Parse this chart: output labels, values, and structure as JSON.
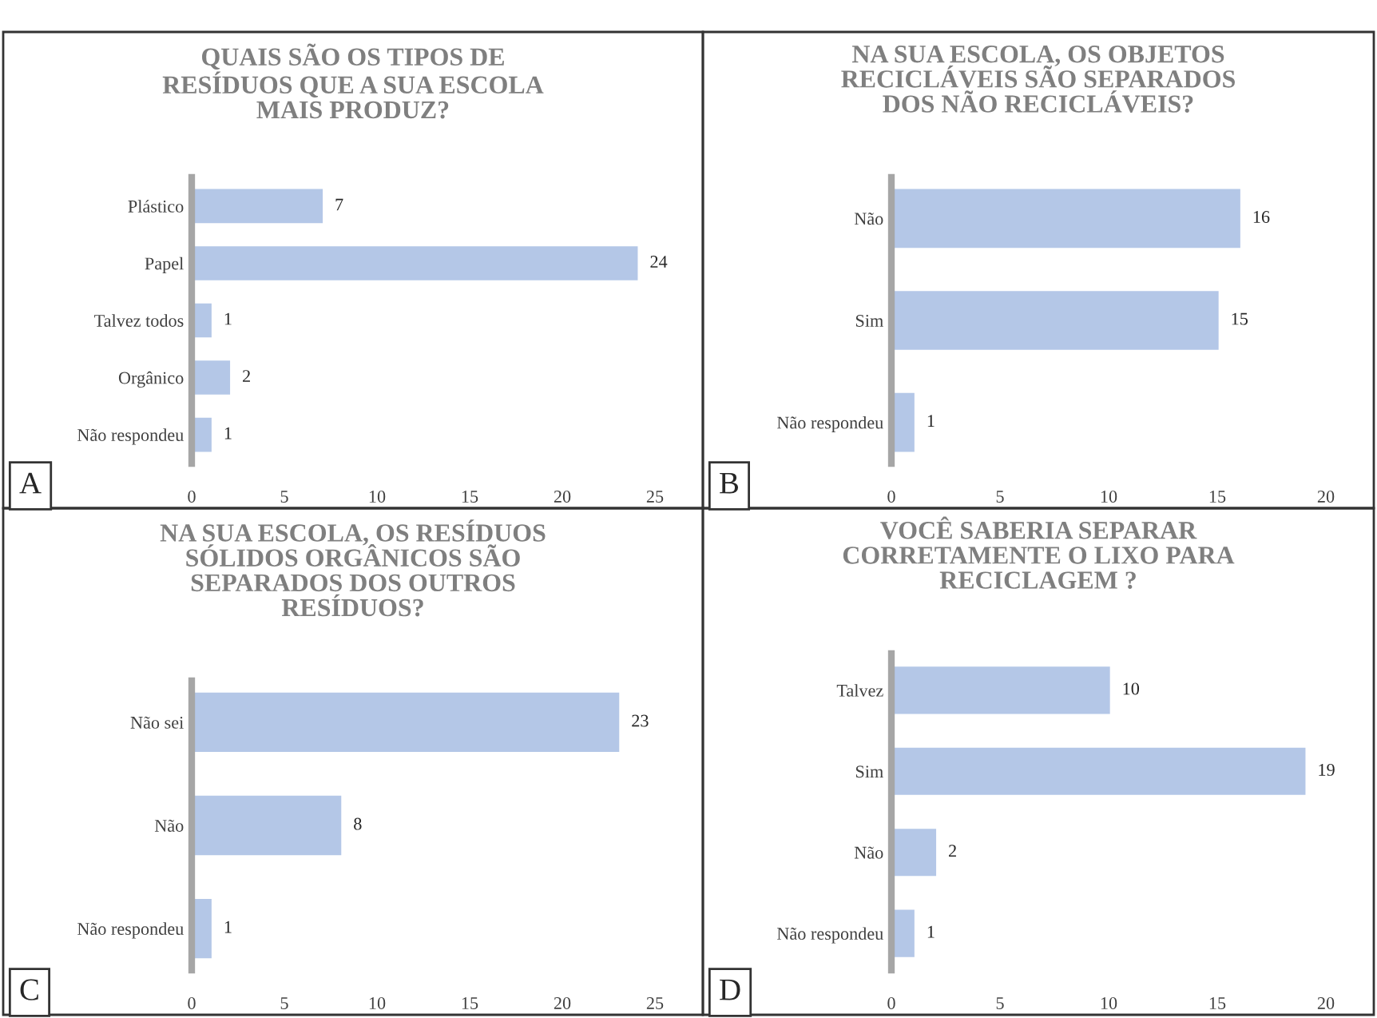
{
  "chart_data": [
    {
      "type": "bar",
      "orientation": "horizontal",
      "title": "QUAIS SÃO OS TIPOS DE\nRESÍDUOS QUE A SUA ESCOLA\nMAIS PRODUZ?",
      "categories": [
        "Plástico",
        "Papel",
        "Talvez todos",
        "Orgânico",
        "Não respondeu"
      ],
      "values": [
        7,
        24,
        1,
        2,
        1
      ],
      "color": "#b4c7e7",
      "xlim": [
        0,
        25
      ],
      "xticks": [
        0,
        5,
        10,
        15,
        20,
        25
      ],
      "data_labels": true,
      "grid": false,
      "legend": false,
      "annotations": [
        "A"
      ]
    },
    {
      "type": "bar",
      "orientation": "horizontal",
      "title": "NA SUA ESCOLA, OS OBJETOS\nRECICLÁVEIS SÃO SEPARADOS\nDOS NÃO RECICLÁVEIS?",
      "categories": [
        "Não",
        "Sim",
        "Não respondeu"
      ],
      "values": [
        16,
        15,
        1
      ],
      "color": "#b4c7e7",
      "xlim": [
        0,
        20
      ],
      "xticks": [
        0,
        5,
        10,
        15,
        20
      ],
      "data_labels": true,
      "grid": false,
      "legend": false,
      "annotations": [
        "B"
      ]
    },
    {
      "type": "bar",
      "orientation": "horizontal",
      "title": "NA SUA ESCOLA, OS RESÍDUOS\nSÓLIDOS ORGÂNICOS SÃO\nSEPARADOS DOS OUTROS\nRESÍDUOS?",
      "categories": [
        "Não sei",
        "Não",
        "Não respondeu"
      ],
      "values": [
        23,
        8,
        1
      ],
      "color": "#b4c7e7",
      "xlim": [
        0,
        25
      ],
      "xticks": [
        0,
        5,
        10,
        15,
        20,
        25
      ],
      "data_labels": true,
      "grid": false,
      "legend": false,
      "annotations": [
        "C"
      ]
    },
    {
      "type": "bar",
      "orientation": "horizontal",
      "title": "VOCÊ SABERIA SEPARAR\nCORRETAMENTE O LIXO PARA\nRECICLAGEM ?",
      "categories": [
        "Talvez",
        "Sim",
        "Não",
        "Não respondeu"
      ],
      "values": [
        10,
        19,
        2,
        1
      ],
      "color": "#b4c7e7",
      "xlim": [
        0,
        20
      ],
      "xticks": [
        0,
        5,
        10,
        15,
        20
      ],
      "data_labels": true,
      "grid": false,
      "legend": false,
      "annotations": [
        "D"
      ]
    }
  ]
}
